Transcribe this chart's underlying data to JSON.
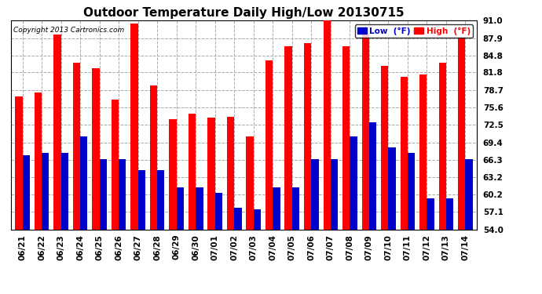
{
  "title": "Outdoor Temperature Daily High/Low 20130715",
  "copyright": "Copyright 2013 Cartronics.com",
  "legend_low": "Low  (°F)",
  "legend_high": "High  (°F)",
  "dates": [
    "06/21",
    "06/22",
    "06/23",
    "06/24",
    "06/25",
    "06/26",
    "06/27",
    "06/28",
    "06/29",
    "06/30",
    "07/01",
    "07/02",
    "07/03",
    "07/04",
    "07/05",
    "07/06",
    "07/07",
    "07/08",
    "07/09",
    "07/10",
    "07/11",
    "07/12",
    "07/13",
    "07/14"
  ],
  "high": [
    77.5,
    78.2,
    88.5,
    83.5,
    82.5,
    77.0,
    90.5,
    79.5,
    73.5,
    74.5,
    73.8,
    74.0,
    70.5,
    84.0,
    86.5,
    87.0,
    91.0,
    86.5,
    88.5,
    83.0,
    81.0,
    81.5,
    83.5,
    88.0
  ],
  "low": [
    67.2,
    67.5,
    67.5,
    70.5,
    66.5,
    66.5,
    64.5,
    64.5,
    61.5,
    61.5,
    60.5,
    57.8,
    57.5,
    61.5,
    61.5,
    66.5,
    66.5,
    70.5,
    73.0,
    68.5,
    67.5,
    59.5,
    59.5,
    66.5
  ],
  "ylim": [
    54.0,
    91.0
  ],
  "yticks": [
    54.0,
    57.1,
    60.2,
    63.2,
    66.3,
    69.4,
    72.5,
    75.6,
    78.7,
    81.8,
    84.8,
    87.9,
    91.0
  ],
  "bar_width": 0.38,
  "high_color": "#ff0000",
  "low_color": "#0000cc",
  "bg_color": "#ffffff",
  "grid_color": "#aaaaaa",
  "title_fontsize": 11,
  "tick_fontsize": 7.5
}
